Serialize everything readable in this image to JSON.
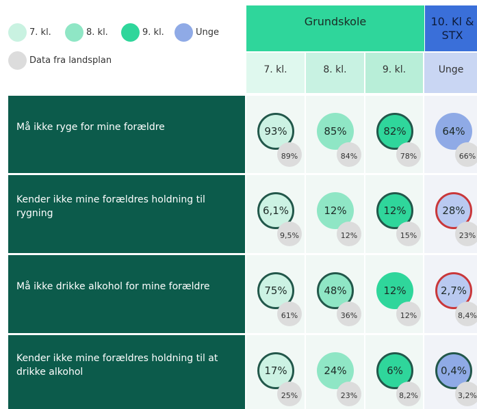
{
  "legend": [
    {
      "label": "7. kl.",
      "color": "#c9f2e1"
    },
    {
      "label": "8. kl.",
      "color": "#8fe6c5"
    },
    {
      "label": "9. kl.",
      "color": "#2fd69b"
    },
    {
      "label": "Unge",
      "color": "#8faae6"
    },
    {
      "label": "Data fra landsplan",
      "color": "#dcdcdc"
    }
  ],
  "header": {
    "groups": [
      "Grundskole",
      "10. Kl & STX"
    ],
    "columns": [
      "7. kl.",
      "8. kl.",
      "9. kl.",
      "Unge"
    ]
  },
  "rows": [
    {
      "label": "Må ikke ryge for mine forældre",
      "cells": [
        {
          "value": "93%",
          "national": "89%",
          "outline": "dark"
        },
        {
          "value": "85%",
          "national": "84%",
          "outline": "none"
        },
        {
          "value": "82%",
          "national": "78%",
          "outline": "dark"
        },
        {
          "value": "64%",
          "national": "66%",
          "outline": "none"
        }
      ]
    },
    {
      "label": "Kender ikke mine forældres holdning til rygning",
      "cells": [
        {
          "value": "6,1%",
          "national": "9,5%",
          "outline": "dark"
        },
        {
          "value": "12%",
          "national": "12%",
          "outline": "none"
        },
        {
          "value": "12%",
          "national": "15%",
          "outline": "dark"
        },
        {
          "value": "28%",
          "national": "23%",
          "outline": "red"
        }
      ]
    },
    {
      "label": "Må ikke drikke alkohol for mine forældre",
      "cells": [
        {
          "value": "75%",
          "national": "61%",
          "outline": "dark"
        },
        {
          "value": "48%",
          "national": "36%",
          "outline": "dark"
        },
        {
          "value": "12%",
          "national": "12%",
          "outline": "none"
        },
        {
          "value": "2,7%",
          "national": "8,4%",
          "outline": "red"
        }
      ]
    },
    {
      "label": "Kender ikke mine forældres holdning til at drikke alkohol",
      "cells": [
        {
          "value": "17%",
          "national": "25%",
          "outline": "dark"
        },
        {
          "value": "24%",
          "national": "23%",
          "outline": "none"
        },
        {
          "value": "6%",
          "national": "8,2%",
          "outline": "dark"
        },
        {
          "value": "0,4%",
          "national": "3,2%",
          "outline": "dark"
        }
      ]
    }
  ]
}
